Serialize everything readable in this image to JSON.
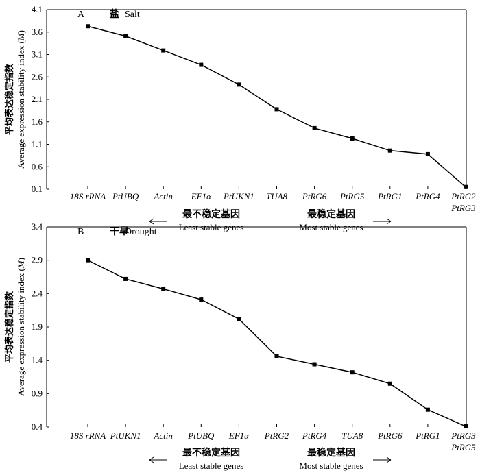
{
  "colors": {
    "line": "#000000",
    "marker": "#000000",
    "background": "#ffffff"
  },
  "chart_data": [
    {
      "type": "line",
      "panel_letter": "A",
      "title_cn": "盐",
      "title_en": "Salt",
      "ylabel_cn": "平均表达稳定指数",
      "ylabel_en": "Average expression stability index (M)",
      "ylim": [
        0.1,
        4.1
      ],
      "yticks": [
        "4.1",
        "3.6",
        "3.1",
        "2.6",
        "2.1",
        "1.6",
        "1.1",
        "0.6",
        "0.1"
      ],
      "categories": [
        "18S rRNA",
        "PtUBQ",
        "Actin",
        "EF1α",
        "PtUKN1",
        "TUA8",
        "PtRG6",
        "PtRG5",
        "PtRG1",
        "PtRG4",
        "PtRG2\nPtRG3"
      ],
      "values": [
        3.73,
        3.51,
        3.19,
        2.87,
        2.43,
        1.88,
        1.46,
        1.23,
        0.96,
        0.88,
        0.15
      ],
      "left_label_cn": "最不稳定基因",
      "left_label_en": "Least stable genes",
      "right_label_cn": "最稳定基因",
      "right_label_en": "Most stable genes"
    },
    {
      "type": "line",
      "panel_letter": "B",
      "title_cn": "干旱",
      "title_en": "Drought",
      "ylabel_cn": "平均表达稳定指数",
      "ylabel_en": "Average expression stability index (M)",
      "ylim": [
        0.4,
        3.4
      ],
      "yticks": [
        "3.4",
        "2.9",
        "2.4",
        "1.9",
        "1.4",
        "0.9",
        "0.4"
      ],
      "categories": [
        "18S rRNA",
        "PtUKN1",
        "Actin",
        "PtUBQ",
        "EF1α",
        "PtRG2",
        "PtRG4",
        "TUA8",
        "PtRG6",
        "PtRG1",
        "PtRG3\nPtRG5"
      ],
      "values": [
        2.9,
        2.62,
        2.47,
        2.31,
        2.02,
        1.46,
        1.34,
        1.22,
        1.05,
        0.66,
        0.41
      ],
      "left_label_cn": "最不稳定基因",
      "left_label_en": "Least stable genes",
      "right_label_cn": "最稳定基因",
      "right_label_en": "Most stable genes"
    }
  ]
}
